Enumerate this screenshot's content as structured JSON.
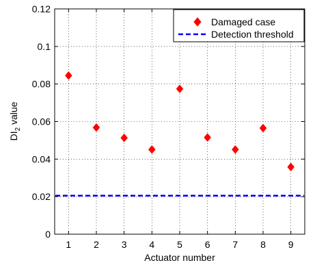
{
  "chart_data": {
    "type": "scatter",
    "xlabel": "Actuator number",
    "ylabel": {
      "main": "DI",
      "sub": "2",
      "rest": " value"
    },
    "xlim": [
      0.5,
      9.5
    ],
    "ylim": [
      0,
      0.12
    ],
    "xticks": [
      "1",
      "2",
      "3",
      "4",
      "5",
      "6",
      "7",
      "8",
      "9"
    ],
    "yticks": [
      "0",
      "0.02",
      "0.04",
      "0.06",
      "0.08",
      "0.1",
      "0.12"
    ],
    "grid": true,
    "legend_position": "top-right",
    "series": [
      {
        "name": "Damaged case",
        "marker": "diamond",
        "color": "#ff0000",
        "x": [
          1,
          2,
          3,
          4,
          5,
          6,
          7,
          8,
          9
        ],
        "y": [
          0.0845,
          0.0568,
          0.0513,
          0.0451,
          0.0774,
          0.0515,
          0.0451,
          0.0565,
          0.0358
        ]
      },
      {
        "name": "Detection threshold",
        "style": "dashed-line",
        "color": "#0000ff",
        "y_constant": 0.0205
      }
    ]
  }
}
